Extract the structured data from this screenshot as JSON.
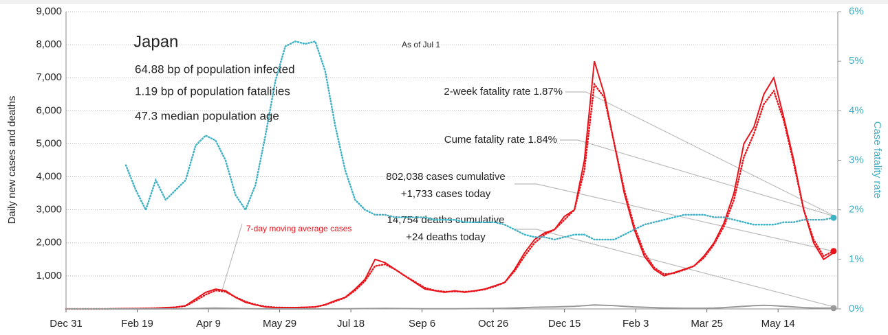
{
  "chart_data": {
    "type": "line",
    "title": "Japan",
    "as_of": "As of Jul 1",
    "stats": [
      "64.88 bp of population infected",
      "1.19 bp of population fatalities",
      "47.3 median population age"
    ],
    "annotations": [
      "2-week fatality rate 1.87%",
      "Cume fatality rate 1.84%",
      "802,038 cases cumulative",
      "+1,733 cases today",
      "14,754 deaths cumulative",
      "+24 deaths today"
    ],
    "ylabel": "Daily new cases and deaths",
    "y2label": "Case fatality rate",
    "grid": true,
    "xlim": [
      0,
      540
    ],
    "xticks": [
      {
        "value": 0,
        "label": "Dec 31"
      },
      {
        "value": 50,
        "label": "Feb 19"
      },
      {
        "value": 100,
        "label": "Apr 9"
      },
      {
        "value": 150,
        "label": "May 29"
      },
      {
        "value": 200,
        "label": "Jul 18"
      },
      {
        "value": 250,
        "label": "Sep 6"
      },
      {
        "value": 300,
        "label": "Oct 26"
      },
      {
        "value": 350,
        "label": "Dec 15"
      },
      {
        "value": 400,
        "label": "Feb 3"
      },
      {
        "value": 450,
        "label": "Mar 25"
      },
      {
        "value": 500,
        "label": "May 14"
      }
    ],
    "ylim": [
      0,
      9000
    ],
    "yticks": [
      {
        "value": 1000,
        "label": "1,000"
      },
      {
        "value": 2000,
        "label": "2,000"
      },
      {
        "value": 3000,
        "label": "3,000"
      },
      {
        "value": 4000,
        "label": "4,000"
      },
      {
        "value": 5000,
        "label": "5,000"
      },
      {
        "value": 6000,
        "label": "6,000"
      },
      {
        "value": 7000,
        "label": "7,000"
      },
      {
        "value": 8000,
        "label": "8,000"
      },
      {
        "value": 9000,
        "label": "9,000"
      }
    ],
    "y2lim": [
      0,
      6
    ],
    "y2ticks": [
      {
        "value": 0,
        "label": "0%"
      },
      {
        "value": 1,
        "label": "1%"
      },
      {
        "value": 2,
        "label": "2%"
      },
      {
        "value": 3,
        "label": "3%"
      },
      {
        "value": 4,
        "label": "4%"
      },
      {
        "value": 5,
        "label": "5%"
      },
      {
        "value": 6,
        "label": "6%"
      }
    ],
    "x": [
      0,
      7,
      14,
      21,
      28,
      35,
      42,
      49,
      56,
      63,
      70,
      77,
      84,
      91,
      98,
      105,
      112,
      119,
      126,
      133,
      140,
      147,
      154,
      161,
      168,
      175,
      182,
      189,
      196,
      203,
      210,
      217,
      224,
      231,
      238,
      245,
      252,
      259,
      266,
      273,
      280,
      287,
      294,
      301,
      308,
      315,
      322,
      329,
      336,
      343,
      350,
      357,
      364,
      371,
      378,
      385,
      392,
      399,
      406,
      413,
      420,
      427,
      434,
      441,
      448,
      455,
      462,
      469,
      476,
      483,
      490,
      497,
      504,
      511,
      518,
      525,
      532,
      539
    ],
    "series": [
      {
        "color": "#e8141b",
        "style": "solid",
        "values": [
          0,
          0,
          0,
          0,
          1,
          5,
          10,
          10,
          15,
          20,
          40,
          50,
          100,
          300,
          500,
          600,
          550,
          350,
          200,
          120,
          60,
          40,
          40,
          40,
          50,
          60,
          130,
          250,
          350,
          600,
          900,
          1500,
          1400,
          1200,
          1000,
          800,
          600,
          550,
          500,
          550,
          500,
          550,
          600,
          700,
          800,
          1200,
          1700,
          2100,
          2300,
          2400,
          2800,
          3000,
          4500,
          7500,
          6500,
          5000,
          3500,
          2400,
          1600,
          1200,
          1000,
          1100,
          1200,
          1300,
          1600,
          2000,
          2600,
          3500,
          5000,
          5500,
          6500,
          7000,
          5800,
          4500,
          3000,
          2000,
          1500,
          1700
        ]
      },
      {
        "name": "7-day moving average cases",
        "color": "#e8141b",
        "style": "dotted",
        "values": [
          0,
          0,
          0,
          0,
          1,
          4,
          8,
          10,
          14,
          20,
          35,
          50,
          90,
          250,
          430,
          560,
          520,
          360,
          220,
          130,
          70,
          45,
          40,
          40,
          45,
          60,
          120,
          230,
          340,
          560,
          850,
          1300,
          1350,
          1200,
          1000,
          820,
          640,
          560,
          520,
          530,
          520,
          540,
          590,
          680,
          800,
          1150,
          1600,
          2000,
          2250,
          2400,
          2700,
          3000,
          4200,
          6800,
          6400,
          5000,
          3600,
          2500,
          1700,
          1250,
          1050,
          1080,
          1180,
          1300,
          1550,
          1950,
          2500,
          3300,
          4600,
          5300,
          6200,
          6600,
          5700,
          4400,
          3000,
          2100,
          1600,
          1750
        ]
      },
      {
        "color": "#999999",
        "style": "solid",
        "values": [
          0,
          0,
          0,
          0,
          0,
          0,
          0,
          0,
          1,
          1,
          2,
          2,
          5,
          10,
          20,
          25,
          20,
          15,
          8,
          5,
          2,
          1,
          1,
          1,
          1,
          1,
          2,
          3,
          5,
          8,
          10,
          12,
          14,
          12,
          10,
          8,
          6,
          5,
          5,
          6,
          8,
          10,
          12,
          15,
          20,
          30,
          40,
          50,
          55,
          60,
          70,
          80,
          100,
          120,
          110,
          100,
          80,
          60,
          50,
          40,
          30,
          25,
          20,
          20,
          20,
          25,
          40,
          60,
          80,
          100,
          110,
          100,
          80,
          60,
          40,
          30,
          25,
          24
        ]
      },
      {
        "color": "#3fb1c5",
        "style": "dotted",
        "axis": "y2",
        "values": [
          null,
          null,
          null,
          null,
          null,
          null,
          2.9,
          2.4,
          2.0,
          2.6,
          2.2,
          2.4,
          2.6,
          3.3,
          3.5,
          3.4,
          3.0,
          2.3,
          2.0,
          2.5,
          3.5,
          4.6,
          5.3,
          5.4,
          5.35,
          5.4,
          4.8,
          3.7,
          2.8,
          2.2,
          2.0,
          1.9,
          1.9,
          1.85,
          1.85,
          1.85,
          1.85,
          1.8,
          1.8,
          1.8,
          1.75,
          1.75,
          1.75,
          1.75,
          1.7,
          1.6,
          1.5,
          1.45,
          1.45,
          1.4,
          1.45,
          1.5,
          1.5,
          1.4,
          1.4,
          1.4,
          1.5,
          1.6,
          1.7,
          1.75,
          1.8,
          1.85,
          1.9,
          1.9,
          1.9,
          1.85,
          1.85,
          1.8,
          1.75,
          1.7,
          1.7,
          1.7,
          1.75,
          1.75,
          1.8,
          1.8,
          1.8,
          1.84
        ]
      }
    ]
  }
}
